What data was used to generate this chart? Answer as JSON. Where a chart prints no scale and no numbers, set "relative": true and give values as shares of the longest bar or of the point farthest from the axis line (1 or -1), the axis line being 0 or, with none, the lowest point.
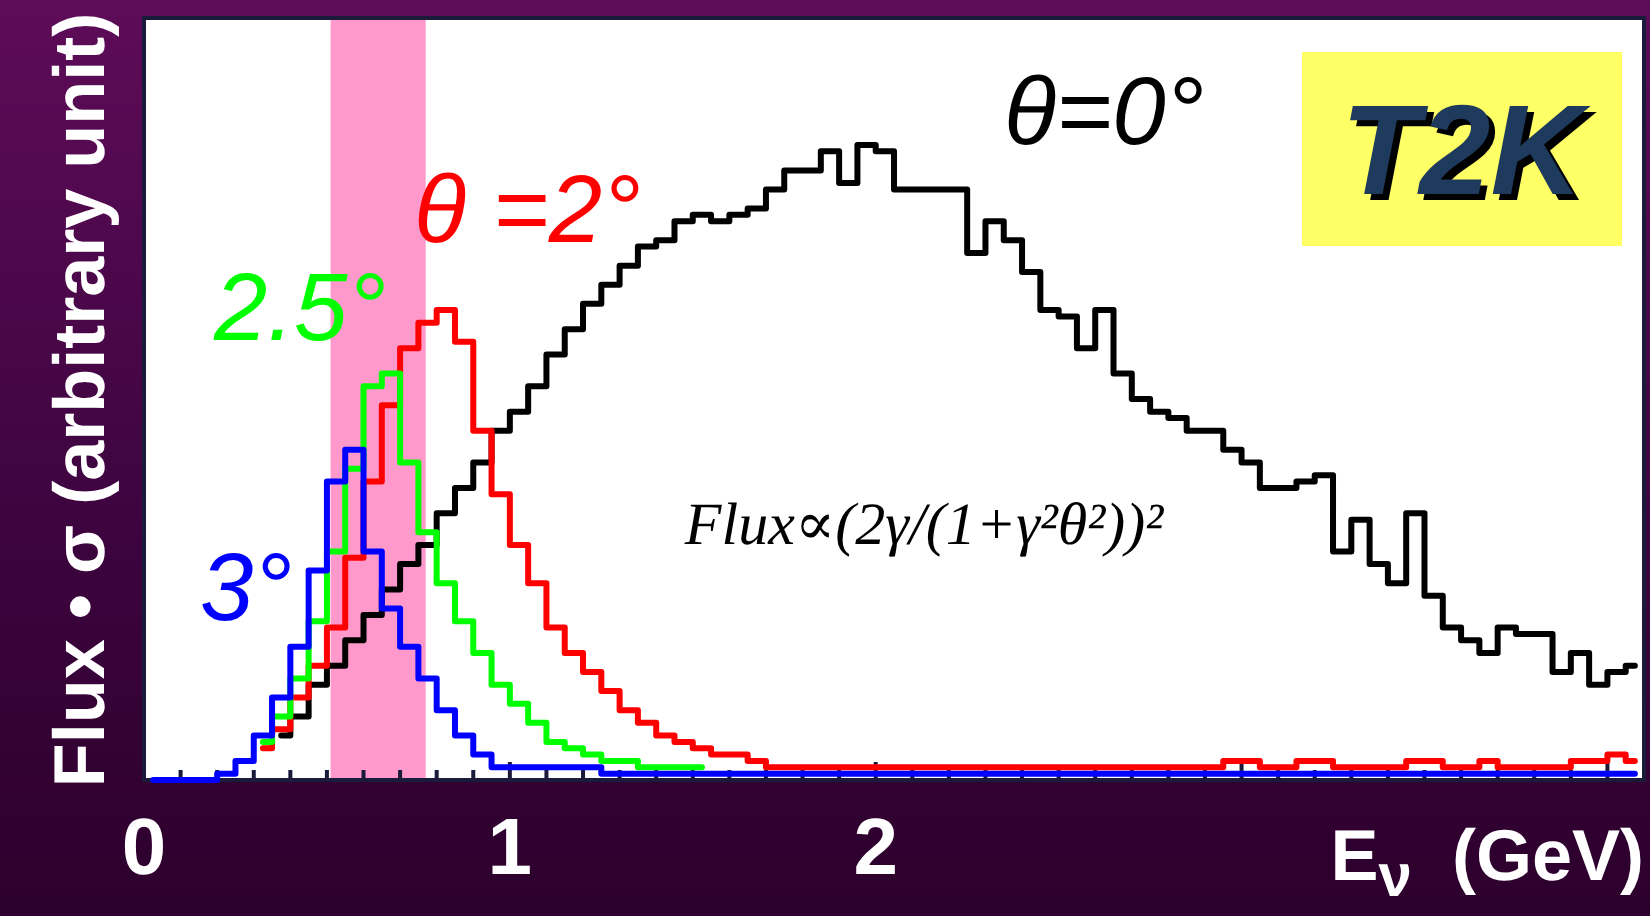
{
  "chart_data": {
    "type": "step",
    "title": "T2K",
    "xlabel": "E$_{ν}$  (GeV)",
    "ylabel": "Flux • σ (arbitrary unit)",
    "annotations": [
      "Flux∝(2γ/(1+γ²θ²))²"
    ],
    "relative": true,
    "xlim": [
      0,
      4.1
    ],
    "xticks": [
      0,
      {
        "value": 0.1,
        "label": null
      },
      {
        "value": 0.2,
        "label": null
      },
      {
        "value": 0.3,
        "label": null
      },
      {
        "value": 0.4,
        "label": null
      },
      {
        "value": 0.5,
        "label": null
      },
      {
        "value": 0.6,
        "label": null
      },
      {
        "value": 0.7,
        "label": null
      },
      {
        "value": 0.8,
        "label": null
      },
      {
        "value": 0.9,
        "label": null
      },
      1,
      {
        "value": 1.1,
        "label": null
      },
      {
        "value": 1.2,
        "label": null
      },
      {
        "value": 1.3,
        "label": null
      },
      {
        "value": 1.4,
        "label": null
      },
      {
        "value": 1.5,
        "label": null
      },
      {
        "value": 1.6,
        "label": null
      },
      {
        "value": 1.7,
        "label": null
      },
      {
        "value": 1.8,
        "label": null
      },
      {
        "value": 1.9,
        "label": null
      },
      2,
      {
        "value": 2.1,
        "label": null
      },
      {
        "value": 2.2,
        "label": null
      },
      {
        "value": 2.3,
        "label": null
      },
      {
        "value": 2.4,
        "label": null
      },
      {
        "value": 2.5,
        "label": null
      },
      {
        "value": 2.6,
        "label": null
      },
      {
        "value": 2.7,
        "label": null
      },
      {
        "value": 2.8,
        "label": null
      },
      {
        "value": 2.9,
        "label": null
      },
      {
        "value": 3,
        "label": null
      },
      {
        "value": 3.1,
        "label": null
      },
      {
        "value": 3.2,
        "label": null
      },
      {
        "value": 3.3,
        "label": null
      },
      {
        "value": 3.4,
        "label": null
      },
      {
        "value": 3.5,
        "label": null
      },
      {
        "value": 3.6,
        "label": null
      },
      {
        "value": 3.7,
        "label": null
      },
      {
        "value": 3.8,
        "label": null
      },
      {
        "value": 3.9,
        "label": null
      },
      {
        "value": 4,
        "label": null
      }
    ],
    "bands": [
      {
        "axis": "x",
        "from": 0.51,
        "to": 0.77,
        "color": "#ff99cc"
      }
    ],
    "x": [
      0.025,
      0.075,
      0.125,
      0.175,
      0.225,
      0.275,
      0.325,
      0.375,
      0.425,
      0.475,
      0.525,
      0.575,
      0.625,
      0.675,
      0.725,
      0.775,
      0.825,
      0.875,
      0.925,
      0.975,
      1.025,
      1.075,
      1.125,
      1.175,
      1.225,
      1.275,
      1.325,
      1.375,
      1.425,
      1.475,
      1.525,
      1.575,
      1.625,
      1.675,
      1.725,
      1.775,
      1.825,
      1.875,
      1.925,
      1.975,
      2.025,
      2.075,
      2.125,
      2.175,
      2.225,
      2.275,
      2.325,
      2.375,
      2.425,
      2.475,
      2.525,
      2.575,
      2.625,
      2.675,
      2.725,
      2.775,
      2.825,
      2.875,
      2.925,
      2.975,
      3.025,
      3.075,
      3.125,
      3.175,
      3.225,
      3.275,
      3.325,
      3.375,
      3.425,
      3.475,
      3.525,
      3.575,
      3.625,
      3.675,
      3.725,
      3.775,
      3.825,
      3.875,
      3.925,
      3.975,
      4.025,
      4.075
    ],
    "series": [
      {
        "name": "θ=0°",
        "color": "#000000",
        "values": [
          null,
          null,
          null,
          null,
          null,
          null,
          null,
          0.07,
          0.1,
          0.15,
          0.18,
          0.22,
          0.26,
          0.3,
          0.34,
          0.37,
          0.42,
          0.46,
          0.5,
          0.55,
          0.58,
          0.62,
          0.67,
          0.71,
          0.75,
          0.78,
          0.81,
          0.84,
          0.85,
          0.88,
          0.89,
          0.88,
          0.89,
          0.9,
          0.93,
          0.96,
          0.96,
          0.99,
          0.94,
          1,
          0.99,
          0.93,
          0.93,
          0.93,
          0.93,
          0.83,
          0.88,
          0.85,
          0.8,
          0.74,
          0.73,
          0.68,
          0.74,
          0.64,
          0.6,
          0.58,
          0.57,
          0.55,
          0.55,
          0.52,
          0.5,
          0.46,
          0.46,
          0.47,
          0.48,
          0.36,
          0.41,
          0.34,
          0.31,
          0.42,
          0.29,
          0.24,
          0.22,
          0.2,
          0.24,
          0.23,
          0.23,
          0.17,
          0.2,
          0.15,
          0.17,
          0.18
        ]
      },
      {
        "name": "θ =2°",
        "color": "#ff0000",
        "values": [
          null,
          null,
          null,
          null,
          null,
          null,
          0.05,
          0.08,
          0.13,
          0.18,
          0.24,
          0.35,
          0.47,
          0.59,
          0.68,
          0.72,
          0.74,
          0.69,
          0.55,
          0.45,
          0.37,
          0.31,
          0.24,
          0.2,
          0.17,
          0.14,
          0.11,
          0.09,
          0.07,
          0.06,
          0.05,
          0.04,
          0.04,
          0.03,
          0.02,
          0.02,
          0.02,
          0.02,
          0.02,
          0.02,
          0.02,
          0.02,
          0.02,
          0.02,
          0.02,
          0.02,
          0.02,
          0.02,
          0.02,
          0.02,
          0.02,
          0.02,
          0.02,
          0.02,
          0.02,
          0.02,
          0.02,
          0.02,
          0.02,
          0.03,
          0.03,
          0.02,
          0.02,
          0.03,
          0.03,
          0.02,
          0.02,
          0.02,
          0.02,
          0.03,
          0.03,
          0.02,
          0.02,
          0.03,
          0.02,
          0.02,
          0.02,
          0.02,
          0.03,
          0.03,
          0.04,
          0.03
        ]
      },
      {
        "name": "2.5°",
        "color": "#00ff00",
        "values": [
          null,
          null,
          null,
          null,
          null,
          null,
          0.06,
          0.1,
          0.16,
          0.25,
          0.36,
          0.49,
          0.62,
          0.64,
          0.5,
          0.39,
          0.31,
          0.25,
          0.2,
          0.15,
          0.12,
          0.09,
          0.06,
          0.05,
          0.04,
          0.03,
          0.03,
          0.02,
          0.02,
          0.02,
          0.02,
          null,
          null,
          null,
          null,
          null,
          null,
          null,
          null,
          null,
          null,
          null,
          null,
          null,
          null,
          null,
          null,
          null,
          null,
          null,
          null,
          null,
          null,
          null,
          null,
          null,
          null,
          null,
          null,
          null,
          null,
          null,
          null,
          null,
          null,
          null,
          null,
          null,
          null,
          null,
          null,
          null,
          null,
          null,
          null,
          null,
          null,
          null,
          null,
          null,
          null,
          null
        ]
      },
      {
        "name": "3°",
        "color": "#0000ff",
        "values": [
          0,
          0,
          0,
          0,
          0.01,
          0.03,
          0.07,
          0.13,
          0.21,
          0.33,
          0.47,
          0.52,
          0.36,
          0.27,
          0.21,
          0.16,
          0.11,
          0.07,
          0.04,
          0.02,
          0.02,
          0.02,
          0.02,
          0.02,
          0.02,
          0.01,
          0.01,
          0.01,
          0.01,
          0.01,
          0.01,
          0.01,
          0.01,
          0.01,
          0.01,
          0.01,
          0.01,
          0.01,
          0.01,
          0.01,
          0.01,
          0.01,
          0.01,
          0.01,
          0.01,
          0.01,
          0.01,
          0.01,
          0.01,
          0.01,
          0.01,
          0.01,
          0.01,
          0.01,
          0.01,
          0.01,
          0.01,
          0.01,
          0.01,
          0.01,
          0.01,
          0.01,
          0.01,
          0.01,
          0.01,
          0.01,
          0.01,
          0.01,
          0.01,
          0.01,
          0.01,
          0.01,
          0.01,
          0.01,
          0.01,
          0.01,
          0.01,
          0.01,
          0.01,
          0.01,
          0.01,
          0.01
        ]
      }
    ]
  }
}
